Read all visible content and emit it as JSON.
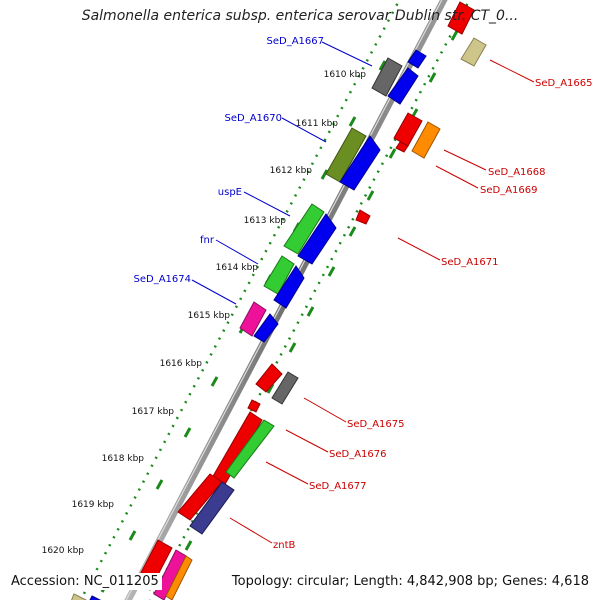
{
  "title": "Salmonella enterica subsp. enterica serovar Dublin str. CT_0...",
  "footer": {
    "accession": "Accession: NC_011205",
    "summary": "Topology: circular; Length: 4,842,908 bp; Genes: 4,618"
  },
  "kbp_ticks": [
    "1610 kbp",
    "1611 kbp",
    "1612 kbp",
    "1613 kbp",
    "1614 kbp",
    "1615 kbp",
    "1616 kbp",
    "1617 kbp",
    "1618 kbp",
    "1619 kbp",
    "1620 kbp"
  ],
  "gene_labels_left": [
    "SeD_A1667",
    "SeD_A1670",
    "uspE",
    "fnr",
    "SeD_A1674"
  ],
  "gene_labels_right": [
    "SeD_A1665",
    "SeD_A1668",
    "SeD_A1669",
    "SeD_A1671",
    "SeD_A1675",
    "SeD_A1676",
    "SeD_A1677",
    "zntB"
  ],
  "colors": {
    "red": "#ee0000",
    "blue": "#0000ee",
    "green": "#33cc33",
    "olive": "#6b8e23",
    "gray": "#666666",
    "orange": "#ff8c00",
    "khaki": "#cdc58a",
    "magenta": "#ee1199",
    "navy": "#3b3b8f",
    "dotted_green": "#1a8a1a",
    "label_blue": "#0000cc",
    "label_red": "#cc0000"
  }
}
